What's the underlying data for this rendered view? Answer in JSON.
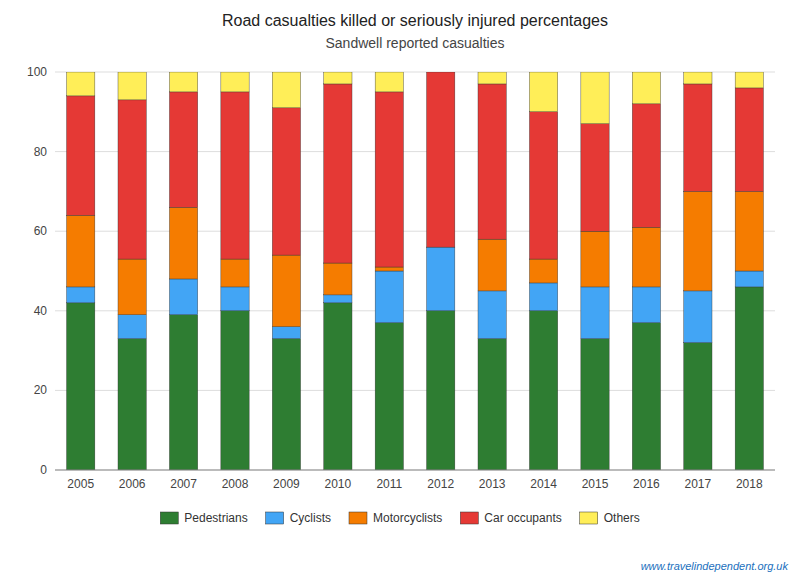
{
  "chart_data": {
    "type": "bar",
    "stacked": true,
    "title": "Road casualties killed or seriously injured percentages",
    "subtitle": "Sandwell reported casualties",
    "categories": [
      "2005",
      "2006",
      "2007",
      "2008",
      "2009",
      "2010",
      "2011",
      "2012",
      "2013",
      "2014",
      "2015",
      "2016",
      "2017",
      "2018"
    ],
    "series": [
      {
        "name": "Pedestrians",
        "color": "#2e7d32",
        "values": [
          42,
          33,
          39,
          40,
          33,
          42,
          37,
          40,
          33,
          40,
          33,
          37,
          32,
          46
        ]
      },
      {
        "name": "Cyclists",
        "color": "#42a5f5",
        "values": [
          4,
          6,
          9,
          6,
          3,
          2,
          13,
          16,
          12,
          7,
          13,
          9,
          13,
          4
        ]
      },
      {
        "name": "Motorcyclists",
        "color": "#f57c00",
        "values": [
          18,
          14,
          18,
          7,
          18,
          8,
          1,
          0,
          13,
          6,
          14,
          15,
          25,
          20
        ]
      },
      {
        "name": "Car occupants",
        "color": "#e53935",
        "values": [
          30,
          40,
          29,
          42,
          37,
          45,
          44,
          44,
          39,
          37,
          27,
          31,
          27,
          26
        ]
      },
      {
        "name": "Others",
        "color": "#ffee58",
        "values": [
          6,
          7,
          5,
          5,
          9,
          3,
          5,
          0,
          3,
          10,
          13,
          8,
          3,
          4
        ]
      }
    ],
    "ylim": [
      0,
      100
    ],
    "yticks": [
      0,
      20,
      40,
      60,
      80,
      100
    ],
    "grid": true,
    "legend": "bottom",
    "annotations": [
      "www.travelindependent.org.uk"
    ]
  }
}
